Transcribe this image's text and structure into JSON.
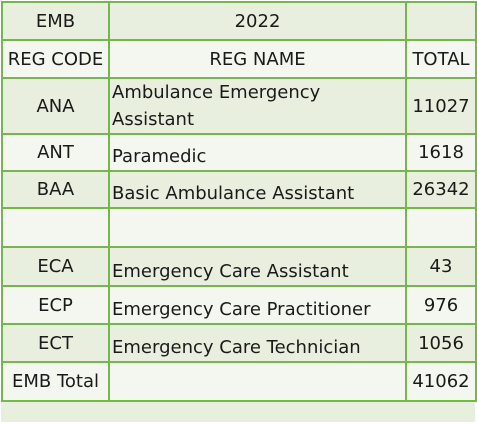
{
  "header": {
    "group_label": "EMB",
    "year": "2022",
    "year_right": ""
  },
  "columns": {
    "code": "REG CODE",
    "name": "REG NAME",
    "total": "TOTAL"
  },
  "rows": [
    {
      "code": "ANA",
      "name": "Ambulance Emergency Assistant",
      "total": "11027"
    },
    {
      "code": "ANT",
      "name": "Paramedic",
      "total": "1618"
    },
    {
      "code": "BAA",
      "name": "Basic Ambulance Assistant",
      "total": "26342"
    },
    {
      "code": "",
      "name": "",
      "total": ""
    },
    {
      "code": "ECA",
      "name": "Emergency Care Assistant",
      "total": "43"
    },
    {
      "code": "ECP",
      "name": "Emergency Care Practitioner",
      "total": "976"
    },
    {
      "code": "ECT",
      "name": "Emergency Care Technician",
      "total": "1056"
    }
  ],
  "footer": {
    "label": "EMB Total",
    "name": "",
    "total": "41062"
  },
  "colors": {
    "border": "#74b74a",
    "band_dark": "#e9efde",
    "band_light": "#f4f7ef"
  }
}
